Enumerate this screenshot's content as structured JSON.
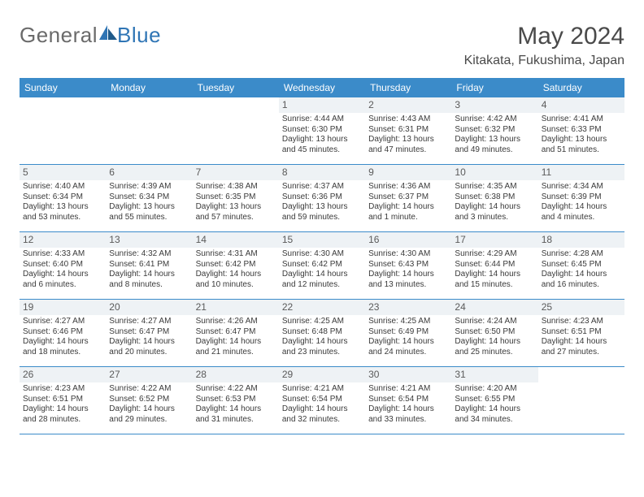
{
  "logo": {
    "text1": "General",
    "text2": "Blue"
  },
  "title": "May 2024",
  "location": "Kitakata, Fukushima, Japan",
  "colors": {
    "header_bg": "#3b8bc9",
    "header_text": "#ffffff",
    "daynum_bg": "#eef2f5",
    "row_border": "#3b8bc9",
    "logo_gray": "#6a6a6a",
    "logo_blue": "#2f75b5"
  },
  "day_headers": [
    "Sunday",
    "Monday",
    "Tuesday",
    "Wednesday",
    "Thursday",
    "Friday",
    "Saturday"
  ],
  "weeks": [
    [
      {
        "n": "",
        "sr": "",
        "ss": "",
        "dl": ""
      },
      {
        "n": "",
        "sr": "",
        "ss": "",
        "dl": ""
      },
      {
        "n": "",
        "sr": "",
        "ss": "",
        "dl": ""
      },
      {
        "n": "1",
        "sr": "Sunrise: 4:44 AM",
        "ss": "Sunset: 6:30 PM",
        "dl": "Daylight: 13 hours and 45 minutes."
      },
      {
        "n": "2",
        "sr": "Sunrise: 4:43 AM",
        "ss": "Sunset: 6:31 PM",
        "dl": "Daylight: 13 hours and 47 minutes."
      },
      {
        "n": "3",
        "sr": "Sunrise: 4:42 AM",
        "ss": "Sunset: 6:32 PM",
        "dl": "Daylight: 13 hours and 49 minutes."
      },
      {
        "n": "4",
        "sr": "Sunrise: 4:41 AM",
        "ss": "Sunset: 6:33 PM",
        "dl": "Daylight: 13 hours and 51 minutes."
      }
    ],
    [
      {
        "n": "5",
        "sr": "Sunrise: 4:40 AM",
        "ss": "Sunset: 6:34 PM",
        "dl": "Daylight: 13 hours and 53 minutes."
      },
      {
        "n": "6",
        "sr": "Sunrise: 4:39 AM",
        "ss": "Sunset: 6:34 PM",
        "dl": "Daylight: 13 hours and 55 minutes."
      },
      {
        "n": "7",
        "sr": "Sunrise: 4:38 AM",
        "ss": "Sunset: 6:35 PM",
        "dl": "Daylight: 13 hours and 57 minutes."
      },
      {
        "n": "8",
        "sr": "Sunrise: 4:37 AM",
        "ss": "Sunset: 6:36 PM",
        "dl": "Daylight: 13 hours and 59 minutes."
      },
      {
        "n": "9",
        "sr": "Sunrise: 4:36 AM",
        "ss": "Sunset: 6:37 PM",
        "dl": "Daylight: 14 hours and 1 minute."
      },
      {
        "n": "10",
        "sr": "Sunrise: 4:35 AM",
        "ss": "Sunset: 6:38 PM",
        "dl": "Daylight: 14 hours and 3 minutes."
      },
      {
        "n": "11",
        "sr": "Sunrise: 4:34 AM",
        "ss": "Sunset: 6:39 PM",
        "dl": "Daylight: 14 hours and 4 minutes."
      }
    ],
    [
      {
        "n": "12",
        "sr": "Sunrise: 4:33 AM",
        "ss": "Sunset: 6:40 PM",
        "dl": "Daylight: 14 hours and 6 minutes."
      },
      {
        "n": "13",
        "sr": "Sunrise: 4:32 AM",
        "ss": "Sunset: 6:41 PM",
        "dl": "Daylight: 14 hours and 8 minutes."
      },
      {
        "n": "14",
        "sr": "Sunrise: 4:31 AM",
        "ss": "Sunset: 6:42 PM",
        "dl": "Daylight: 14 hours and 10 minutes."
      },
      {
        "n": "15",
        "sr": "Sunrise: 4:30 AM",
        "ss": "Sunset: 6:42 PM",
        "dl": "Daylight: 14 hours and 12 minutes."
      },
      {
        "n": "16",
        "sr": "Sunrise: 4:30 AM",
        "ss": "Sunset: 6:43 PM",
        "dl": "Daylight: 14 hours and 13 minutes."
      },
      {
        "n": "17",
        "sr": "Sunrise: 4:29 AM",
        "ss": "Sunset: 6:44 PM",
        "dl": "Daylight: 14 hours and 15 minutes."
      },
      {
        "n": "18",
        "sr": "Sunrise: 4:28 AM",
        "ss": "Sunset: 6:45 PM",
        "dl": "Daylight: 14 hours and 16 minutes."
      }
    ],
    [
      {
        "n": "19",
        "sr": "Sunrise: 4:27 AM",
        "ss": "Sunset: 6:46 PM",
        "dl": "Daylight: 14 hours and 18 minutes."
      },
      {
        "n": "20",
        "sr": "Sunrise: 4:27 AM",
        "ss": "Sunset: 6:47 PM",
        "dl": "Daylight: 14 hours and 20 minutes."
      },
      {
        "n": "21",
        "sr": "Sunrise: 4:26 AM",
        "ss": "Sunset: 6:47 PM",
        "dl": "Daylight: 14 hours and 21 minutes."
      },
      {
        "n": "22",
        "sr": "Sunrise: 4:25 AM",
        "ss": "Sunset: 6:48 PM",
        "dl": "Daylight: 14 hours and 23 minutes."
      },
      {
        "n": "23",
        "sr": "Sunrise: 4:25 AM",
        "ss": "Sunset: 6:49 PM",
        "dl": "Daylight: 14 hours and 24 minutes."
      },
      {
        "n": "24",
        "sr": "Sunrise: 4:24 AM",
        "ss": "Sunset: 6:50 PM",
        "dl": "Daylight: 14 hours and 25 minutes."
      },
      {
        "n": "25",
        "sr": "Sunrise: 4:23 AM",
        "ss": "Sunset: 6:51 PM",
        "dl": "Daylight: 14 hours and 27 minutes."
      }
    ],
    [
      {
        "n": "26",
        "sr": "Sunrise: 4:23 AM",
        "ss": "Sunset: 6:51 PM",
        "dl": "Daylight: 14 hours and 28 minutes."
      },
      {
        "n": "27",
        "sr": "Sunrise: 4:22 AM",
        "ss": "Sunset: 6:52 PM",
        "dl": "Daylight: 14 hours and 29 minutes."
      },
      {
        "n": "28",
        "sr": "Sunrise: 4:22 AM",
        "ss": "Sunset: 6:53 PM",
        "dl": "Daylight: 14 hours and 31 minutes."
      },
      {
        "n": "29",
        "sr": "Sunrise: 4:21 AM",
        "ss": "Sunset: 6:54 PM",
        "dl": "Daylight: 14 hours and 32 minutes."
      },
      {
        "n": "30",
        "sr": "Sunrise: 4:21 AM",
        "ss": "Sunset: 6:54 PM",
        "dl": "Daylight: 14 hours and 33 minutes."
      },
      {
        "n": "31",
        "sr": "Sunrise: 4:20 AM",
        "ss": "Sunset: 6:55 PM",
        "dl": "Daylight: 14 hours and 34 minutes."
      },
      {
        "n": "",
        "sr": "",
        "ss": "",
        "dl": ""
      }
    ]
  ]
}
